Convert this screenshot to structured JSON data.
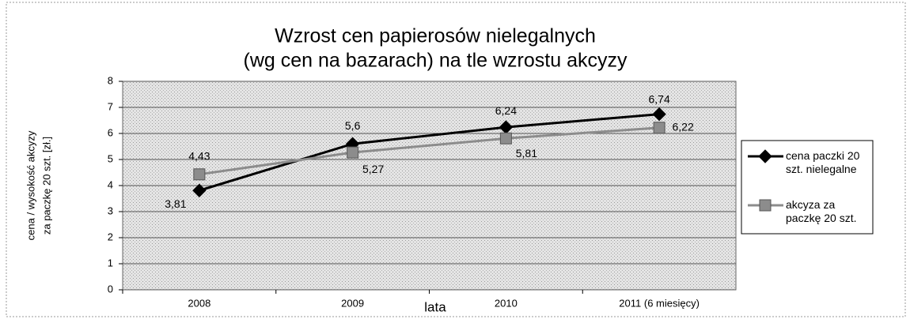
{
  "chart_data": {
    "type": "line",
    "title": [
      "Wzrost cen papierosów nielegalnych",
      "(wg cen na bazarach) na tle wzrostu akcyzy"
    ],
    "y_label": [
      "cena / wysokość akcyzy",
      "za paczkę 20 szt. [zł.]"
    ],
    "x_label": "lata",
    "categories": [
      "2008",
      "2009",
      "2010",
      "2011 (6 miesięcy)"
    ],
    "series": [
      {
        "name": "cena paczki 20 szt. nielegalne",
        "color": "#000000",
        "marker": "diamond",
        "values": [
          3.81,
          5.6,
          6.24,
          6.74
        ],
        "value_labels": [
          "3,81",
          "5,6",
          "6,24",
          "6,74"
        ]
      },
      {
        "name": "akcyza za paczkę 20 szt.",
        "color": "#8c8c8c",
        "marker": "square",
        "values": [
          4.43,
          5.27,
          5.81,
          6.22
        ],
        "value_labels": [
          "4,43",
          "5,27",
          "5,81",
          "6,22"
        ]
      }
    ],
    "ylim": [
      0,
      8
    ],
    "yticks": [
      0,
      1,
      2,
      3,
      4,
      5,
      6,
      7,
      8
    ],
    "grid": true,
    "legend": "right"
  }
}
